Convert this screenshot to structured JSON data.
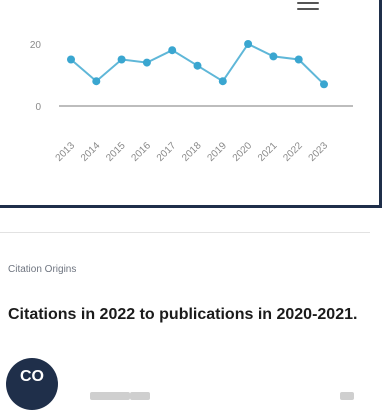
{
  "chart_card": {
    "menu_icon": "hamburger-menu-icon",
    "chart_data": {
      "type": "line",
      "categories": [
        "2013",
        "2014",
        "2015",
        "2016",
        "2017",
        "2018",
        "2019",
        "2020",
        "2021",
        "2022",
        "2023"
      ],
      "series": [
        {
          "values": [
            15,
            8,
            15,
            14,
            18,
            13,
            8,
            20,
            16,
            15,
            7
          ]
        }
      ],
      "ylim": [
        0,
        20
      ],
      "yticks": [
        "0",
        "20"
      ],
      "grid": true,
      "colors": {
        "line": "#5fb7d8",
        "point": "#3aa6d0",
        "axis": "#bdbdbd",
        "tick": "#8a8a8a"
      }
    }
  },
  "section": {
    "label": "Citation Origins",
    "heading": "Citations in 2022 to publications in 2020-2021."
  },
  "fab": {
    "label": "CO"
  }
}
